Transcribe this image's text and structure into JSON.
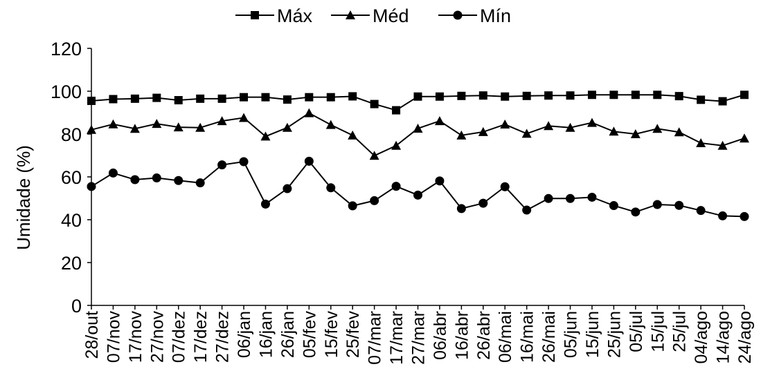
{
  "chart_data": {
    "type": "line",
    "ylabel": "Umidade (%)",
    "ylim": [
      0,
      120
    ],
    "yticks": [
      0,
      20,
      40,
      60,
      80,
      100,
      120
    ],
    "grid": false,
    "legend_position": "top",
    "categories": [
      "28/out",
      "07/nov",
      "17/nov",
      "27/nov",
      "07/dez",
      "17/dez",
      "27/dez",
      "06/jan",
      "16/jan",
      "26/jan",
      "05/fev",
      "15/fev",
      "25/fev",
      "07/mar",
      "17/mar",
      "27/mar",
      "06/abr",
      "16/abr",
      "26/abr",
      "06/mai",
      "16/mai",
      "26/mai",
      "05/jun",
      "15/jun",
      "25/jun",
      "05/jul",
      "15/jul",
      "25/jul",
      "04/ago",
      "14/ago",
      "24/ago"
    ],
    "series": [
      {
        "name": "Máx",
        "marker": "square",
        "color": "#000000",
        "values": [
          95.5,
          96.3,
          96.5,
          96.9,
          95.8,
          96.5,
          96.5,
          97.2,
          97.2,
          96.1,
          97.2,
          97.2,
          97.6,
          94.0,
          91.1,
          97.5,
          97.5,
          97.8,
          98.0,
          97.5,
          97.8,
          98.0,
          98.0,
          98.3,
          98.3,
          98.3,
          98.3,
          97.7,
          96.0,
          95.3,
          98.3
        ]
      },
      {
        "name": "Méd",
        "marker": "triangle",
        "color": "#000000",
        "values": [
          82.0,
          84.6,
          82.5,
          84.8,
          83.2,
          83.0,
          86.1,
          87.6,
          78.9,
          83.0,
          89.8,
          84.3,
          79.4,
          69.9,
          74.6,
          82.6,
          86.1,
          79.4,
          81.0,
          84.5,
          80.2,
          83.8,
          83.0,
          85.3,
          81.2,
          80.0,
          82.5,
          80.9,
          75.8,
          74.6,
          78.0
        ]
      },
      {
        "name": "Mín",
        "marker": "circle",
        "color": "#000000",
        "values": [
          55.5,
          61.8,
          58.7,
          59.5,
          58.3,
          57.2,
          65.6,
          67.1,
          47.3,
          54.5,
          67.3,
          54.9,
          46.5,
          48.9,
          55.6,
          51.5,
          58.1,
          45.2,
          47.7,
          55.4,
          44.5,
          49.9,
          49.9,
          50.5,
          46.6,
          43.6,
          47.1,
          46.7,
          44.3,
          41.8,
          41.5
        ]
      }
    ]
  }
}
